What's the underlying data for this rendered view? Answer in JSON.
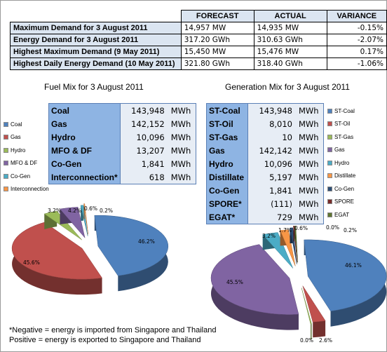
{
  "summary": {
    "headers": [
      "FORECAST",
      "ACTUAL",
      "VARIANCE"
    ],
    "rows": [
      {
        "label": "Maximum Demand for 3 August 2011",
        "forecast": "14,957",
        "forecast_unit": "MW",
        "actual": "14,935",
        "actual_unit": "MW",
        "variance": "-0.15%"
      },
      {
        "label": "Energy Demand for 3 August 2011",
        "forecast": "317.20",
        "forecast_unit": "GWh",
        "actual": "310.63",
        "actual_unit": "GWh",
        "variance": "-2.07%"
      },
      {
        "label": "Highest Maximum Demand (9 May 2011)",
        "forecast": "15,450",
        "forecast_unit": "MW",
        "actual": "15,476",
        "actual_unit": "MW",
        "variance": "0.17%"
      },
      {
        "label": "Highest Daily Energy Demand (10 May 2011)",
        "forecast": "321.80",
        "forecast_unit": "GWh",
        "actual": "318.40",
        "actual_unit": "GWh",
        "variance": "-1.06%"
      }
    ]
  },
  "fuel_mix": {
    "title": "Fuel Mix for 3 August 2011",
    "rows": [
      {
        "name": "Coal",
        "value": "143,948",
        "unit": "MWh"
      },
      {
        "name": "Gas",
        "value": "142,152",
        "unit": "MWh"
      },
      {
        "name": "Hydro",
        "value": "10,096",
        "unit": "MWh"
      },
      {
        "name": "MFO & DF",
        "value": "13,207",
        "unit": "MWh"
      },
      {
        "name": "Co-Gen",
        "value": "1,841",
        "unit": "MWh"
      },
      {
        "name": "Interconnection*",
        "value": "618",
        "unit": "MWh"
      }
    ],
    "legend": [
      {
        "name": "Coal",
        "color": "#4f81bd"
      },
      {
        "name": "Gas",
        "color": "#c0504d"
      },
      {
        "name": "Hydro",
        "color": "#9bbb59"
      },
      {
        "name": "MFO & DF",
        "color": "#8064a2"
      },
      {
        "name": "Co-Gen",
        "color": "#4bacc6"
      },
      {
        "name": "Interconnection",
        "color": "#f79646"
      }
    ],
    "labels": [
      "46.2%",
      "45.6%",
      "3.2%",
      "4.2%",
      "0.6%",
      "0.2%"
    ]
  },
  "generation_mix": {
    "title": "Generation Mix for 3 August 2011",
    "rows": [
      {
        "name": "ST-Coal",
        "value": "143,948",
        "unit": "MWh"
      },
      {
        "name": "ST-Oil",
        "value": "8,010",
        "unit": "MWh"
      },
      {
        "name": "ST-Gas",
        "value": "10",
        "unit": "MWh"
      },
      {
        "name": "Gas",
        "value": "142,142",
        "unit": "MWh"
      },
      {
        "name": "Hydro",
        "value": "10,096",
        "unit": "MWh"
      },
      {
        "name": "Distillate",
        "value": "5,197",
        "unit": "MWh"
      },
      {
        "name": "Co-Gen",
        "value": "1,841",
        "unit": "MWh"
      },
      {
        "name": "SPORE*",
        "value": "(111)",
        "unit": "MWh"
      },
      {
        "name": "EGAT*",
        "value": "729",
        "unit": "MWh"
      }
    ],
    "legend": [
      {
        "name": "ST-Coal",
        "color": "#4f81bd"
      },
      {
        "name": "ST-Oil",
        "color": "#c0504d"
      },
      {
        "name": "ST-Gas",
        "color": "#9bbb59"
      },
      {
        "name": "Gas",
        "color": "#8064a2"
      },
      {
        "name": "Hydro",
        "color": "#4bacc6"
      },
      {
        "name": "Distillate",
        "color": "#f79646"
      },
      {
        "name": "Co-Gen",
        "color": "#2c4d75"
      },
      {
        "name": "SPORE",
        "color": "#772c2a"
      },
      {
        "name": "EGAT",
        "color": "#5f7530"
      }
    ],
    "labels": [
      "46.1%",
      "2.6%",
      "0.0%",
      "45.5%",
      "3.2%",
      "1.7%",
      "0.6%",
      "0.0%",
      "0.2%"
    ]
  },
  "chart_data": [
    {
      "type": "pie",
      "title": "Fuel Mix for 3 August 2011",
      "categories": [
        "Coal",
        "Gas",
        "Hydro",
        "MFO & DF",
        "Co-Gen",
        "Interconnection"
      ],
      "values": [
        46.2,
        45.6,
        3.2,
        4.2,
        0.6,
        0.2
      ]
    },
    {
      "type": "pie",
      "title": "Generation Mix for 3 August 2011",
      "categories": [
        "ST-Coal",
        "ST-Oil",
        "ST-Gas",
        "Gas",
        "Hydro",
        "Distillate",
        "Co-Gen",
        "SPORE",
        "EGAT"
      ],
      "values": [
        46.1,
        2.6,
        0.0,
        45.5,
        3.2,
        1.7,
        0.6,
        0.0,
        0.2
      ]
    }
  ],
  "note": {
    "line1": "*Negative = energy is imported from Singapore and Thailand",
    "line2": "Positive = energy is exported to Singapore and Thailand"
  }
}
